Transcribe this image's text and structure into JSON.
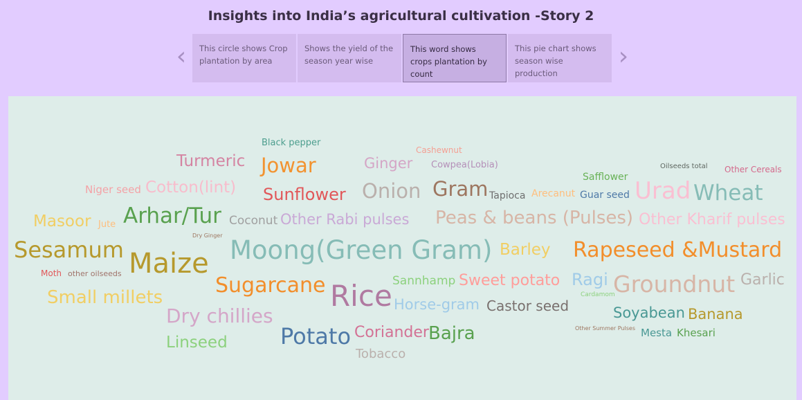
{
  "title": "Insights into India’s agricultural cultivation -Story 2",
  "nav": {
    "prev_icon": "‹",
    "next_icon": "›"
  },
  "story_points": [
    {
      "label": "This circle shows Crop plantation by area"
    },
    {
      "label": "Shows the yield of the season year wise"
    },
    {
      "label": "This word shows crops plantation by count"
    },
    {
      "label": "This pie chart shows season wise production"
    }
  ],
  "word_cloud": {
    "words": [
      {
        "text": "Black pepper",
        "color": "#4d9e8e"
      },
      {
        "text": "Cashewnut",
        "color": "#f4a094"
      },
      {
        "text": "Turmeric",
        "color": "#d484a2"
      },
      {
        "text": "Jowar",
        "color": "#f29330"
      },
      {
        "text": "Ginger",
        "color": "#d4a6c6"
      },
      {
        "text": "Cowpea(Lobia)",
        "color": "#b48fb8"
      },
      {
        "text": "Safflower",
        "color": "#68b257"
      },
      {
        "text": "Oilseeds total",
        "color": "#5e6660"
      },
      {
        "text": "Other Cereals",
        "color": "#d46a8c"
      },
      {
        "text": "Niger seed",
        "color": "#f4a2a6"
      },
      {
        "text": "Cotton(lint)",
        "color": "#f8bccc"
      },
      {
        "text": "Sunflower",
        "color": "#e15759"
      },
      {
        "text": "Onion",
        "color": "#bab0ac"
      },
      {
        "text": "Gram",
        "color": "#9d7660"
      },
      {
        "text": "Tapioca",
        "color": "#6e6e6e"
      },
      {
        "text": "Arecanut",
        "color": "#ffbe7d"
      },
      {
        "text": "Guar seed",
        "color": "#4e79a7"
      },
      {
        "text": "Urad",
        "color": "#fabfd2"
      },
      {
        "text": "Wheat",
        "color": "#86bcb6"
      },
      {
        "text": "Masoor",
        "color": "#f1ce63"
      },
      {
        "text": "Jute",
        "color": "#ffbe7d"
      },
      {
        "text": "Arhar/Tur",
        "color": "#59a14f"
      },
      {
        "text": "Coconut",
        "color": "#a0a0a0"
      },
      {
        "text": "Other Rabi pulses",
        "color": "#c9a9d6"
      },
      {
        "text": "Peas & beans (Pulses)",
        "color": "#d7b5a6"
      },
      {
        "text": "Other Kharif pulses",
        "color": "#fabfd2"
      },
      {
        "text": "Dry Ginger",
        "color": "#9d7660"
      },
      {
        "text": "Sesamum",
        "color": "#b6992d"
      },
      {
        "text": "Maize",
        "color": "#b6992d"
      },
      {
        "text": "Moong(Green Gram)",
        "color": "#86bcb6"
      },
      {
        "text": "Barley",
        "color": "#f1ce63"
      },
      {
        "text": "Rapeseed &Mustard",
        "color": "#f28e2b"
      },
      {
        "text": "Moth",
        "color": "#e15759"
      },
      {
        "text": "other oilseeds",
        "color": "#a0736a"
      },
      {
        "text": "Sugarcane",
        "color": "#f28e2b"
      },
      {
        "text": "Rice",
        "color": "#b07aa1"
      },
      {
        "text": "Sannhamp",
        "color": "#8cd17d"
      },
      {
        "text": "Sweet potato",
        "color": "#ff9d9a"
      },
      {
        "text": "Ragi",
        "color": "#a0cbe8"
      },
      {
        "text": "Groundnut",
        "color": "#d7b5a6"
      },
      {
        "text": "Garlic",
        "color": "#bab0ac"
      },
      {
        "text": "Cardamom",
        "color": "#8cd17d"
      },
      {
        "text": "Small millets",
        "color": "#f1ce63"
      },
      {
        "text": "Horse-gram",
        "color": "#a0cbe8"
      },
      {
        "text": "Castor seed",
        "color": "#79706e"
      },
      {
        "text": "Soyabean",
        "color": "#499894"
      },
      {
        "text": "Banana",
        "color": "#b6992d"
      },
      {
        "text": "Dry chillies",
        "color": "#d4a6c8"
      },
      {
        "text": "Other Summer Pulses",
        "color": "#9d7660"
      },
      {
        "text": "Linseed",
        "color": "#8cd17d"
      },
      {
        "text": "Potato",
        "color": "#4e79a7"
      },
      {
        "text": "Coriander",
        "color": "#d37295"
      },
      {
        "text": "Bajra",
        "color": "#59a14f"
      },
      {
        "text": "Mesta",
        "color": "#499894"
      },
      {
        "text": "Khesari",
        "color": "#59a14f"
      },
      {
        "text": "Tobacco",
        "color": "#bab0ac"
      }
    ]
  }
}
